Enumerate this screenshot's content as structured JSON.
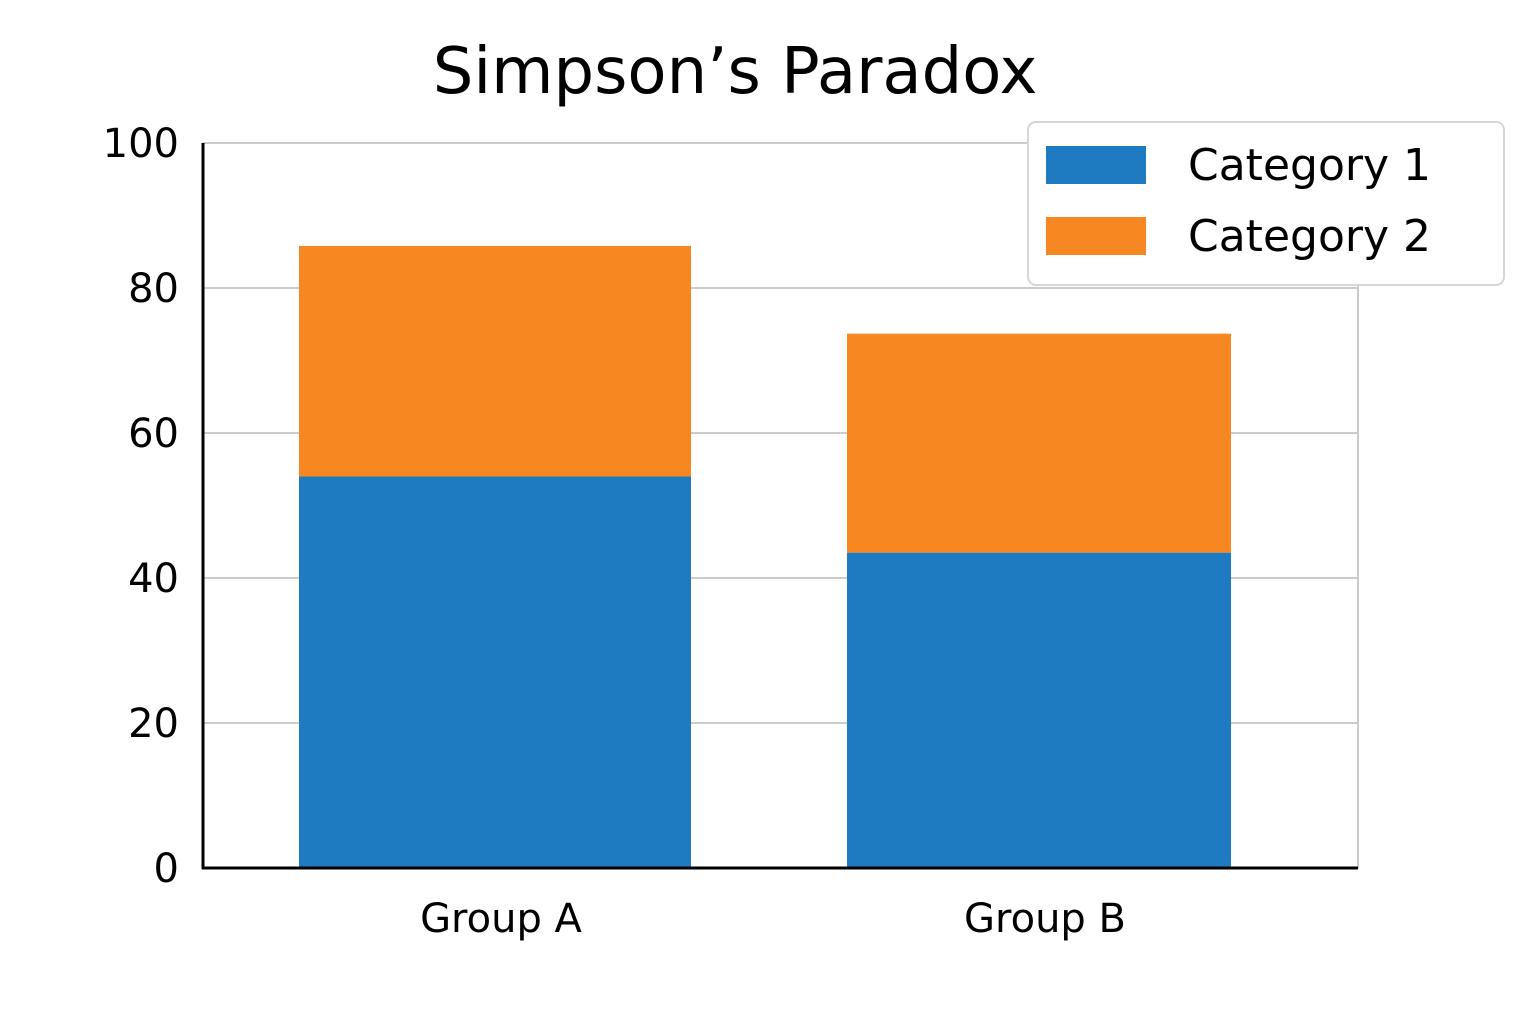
{
  "chart_data": {
    "type": "bar",
    "stacked": true,
    "title": "Simpson’s Paradox",
    "xlabel": "",
    "ylabel": "",
    "categories": [
      "Group A",
      "Group B"
    ],
    "series": [
      {
        "name": "Category 1",
        "values": [
          54,
          43.5
        ],
        "color": "#1f7bc1"
      },
      {
        "name": "Category 2",
        "values": [
          31.8,
          30.2
        ],
        "color": "#f78721"
      }
    ],
    "ylim": [
      0,
      100
    ],
    "yticks": [
      0,
      20,
      40,
      60,
      80,
      100
    ],
    "grid": true,
    "legend": "top-right"
  }
}
